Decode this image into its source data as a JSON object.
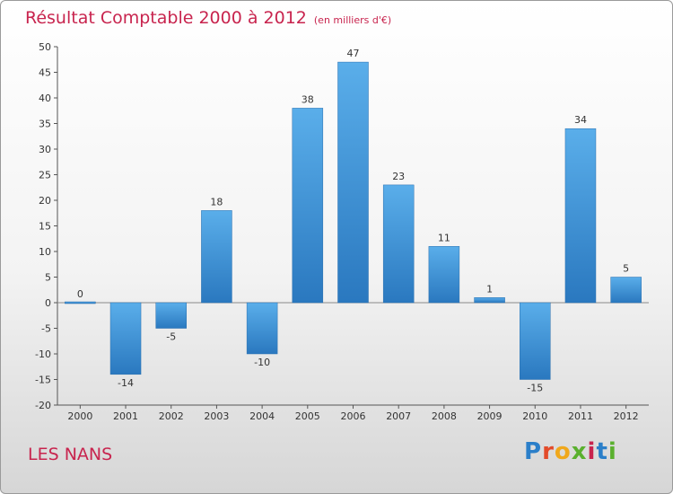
{
  "title": "Résultat Comptable 2000 à 2012",
  "subtitle": "(en milliers d'€)",
  "commune": "LES NANS",
  "logo": {
    "letters": [
      "P",
      "r",
      "o",
      "x",
      "i",
      "t",
      "i"
    ],
    "colors": [
      "#2b7fc9",
      "#e34b2a",
      "#f0a81c",
      "#5ab02e",
      "#c8244e",
      "#2b7fc9",
      "#5ab02e"
    ]
  },
  "chart_data": {
    "type": "bar",
    "title": "Résultat Comptable 2000 à 2012",
    "subtitle": "(en milliers d'€)",
    "categories": [
      "2000",
      "2001",
      "2002",
      "2003",
      "2004",
      "2005",
      "2006",
      "2007",
      "2008",
      "2009",
      "2010",
      "2011",
      "2012"
    ],
    "values": [
      0,
      -14,
      -5,
      18,
      -10,
      38,
      47,
      23,
      11,
      1,
      -15,
      34,
      5
    ],
    "labels": [
      "0",
      "-14",
      "-5",
      "18",
      "-10",
      "38",
      "47",
      "23",
      "11",
      "1",
      "-15",
      "34",
      "5"
    ],
    "ylim": [
      -20,
      50
    ],
    "yticks": [
      50,
      45,
      40,
      35,
      30,
      25,
      20,
      15,
      10,
      5,
      0,
      -5,
      -10,
      -15,
      -20
    ],
    "xlabel": "",
    "ylabel": "",
    "grid": false,
    "bar_color": "#3d8fd6"
  }
}
